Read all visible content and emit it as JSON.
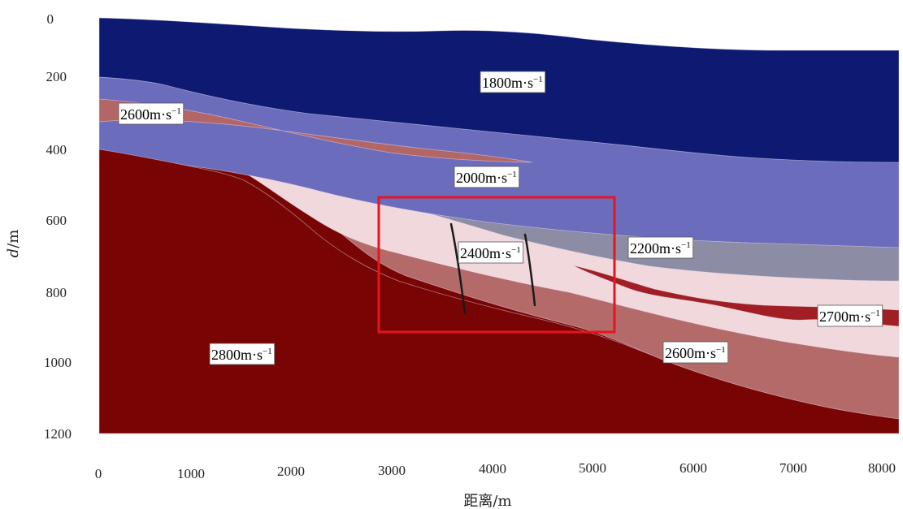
{
  "axes": {
    "x_title": "距离/m",
    "y_title_italic": "d",
    "y_title_rest": "/m",
    "x_ticks": [
      "0",
      "1000",
      "2000",
      "3000",
      "4000",
      "5000",
      "6000",
      "7000",
      "8000"
    ],
    "y_ticks": [
      "0",
      "200",
      "400",
      "600",
      "800",
      "1000",
      "1200"
    ]
  },
  "colors": {
    "c1800": "#0e1a72",
    "c2000": "#6c6cbd",
    "c2600_upper": "#b36666",
    "c2800": "#780404",
    "c2200": "#8c8ca4",
    "c2400": "#f1d8dc",
    "c2600_lower": "#b56a6a",
    "c2700": "#a01e24",
    "highlight_box": "#e8141e"
  },
  "labels": {
    "v1800": {
      "base": "1800m·s",
      "sup": "−1"
    },
    "v2600a": {
      "base": "2600m·s",
      "sup": "−1"
    },
    "v2000": {
      "base": "2000m·s",
      "sup": "−1"
    },
    "v2200": {
      "base": "2200m·s",
      "sup": "−1"
    },
    "v2400": {
      "base": "2400m·s",
      "sup": "−1"
    },
    "v2700": {
      "base": "2700m·s",
      "sup": "−1"
    },
    "v2800": {
      "base": "2800m·s",
      "sup": "−1"
    },
    "v2600b": {
      "base": "2600m·s",
      "sup": "−1"
    }
  }
}
